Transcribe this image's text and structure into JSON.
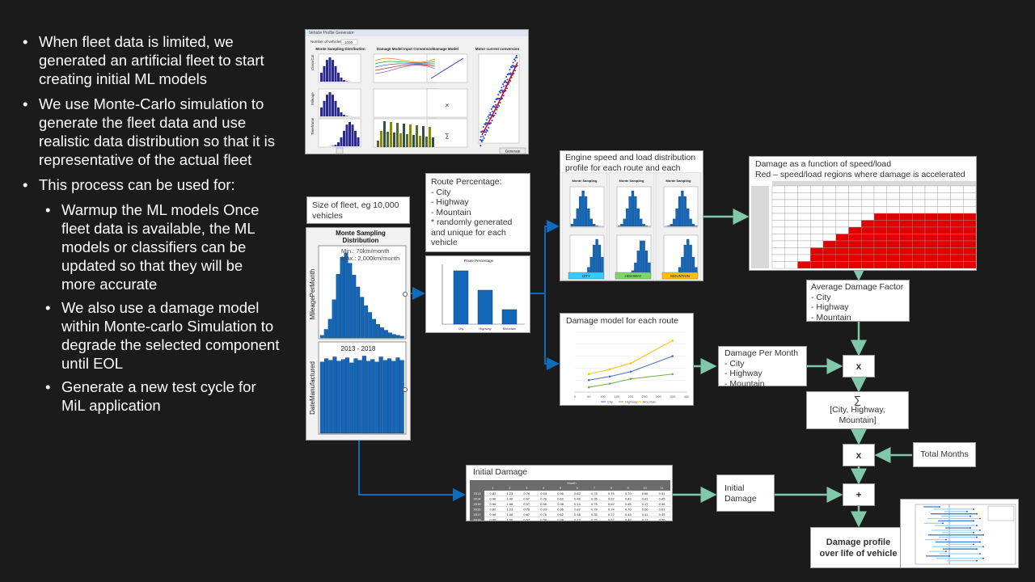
{
  "bullets": [
    {
      "level": 1,
      "text": "When fleet data is limited,  we generated an artificial fleet to start creating initial ML models"
    },
    {
      "level": 1,
      "text": "We use Monte-Carlo simulation  to generate the fleet data and use realistic data distribution so that it is representative of the actual fleet"
    },
    {
      "level": 1,
      "text": "This process can be used for:"
    },
    {
      "level": 2,
      "text": "Warmup  the ML models Once fleet data is available, the ML models or classifiers can be updated so that they will be more accurate"
    },
    {
      "level": 2,
      "text": "We also use a damage model  within Monte-carlo Simulation  to degrade the selected component  until EOL"
    },
    {
      "level": 2,
      "text": "Generate a new test cycle for MiL application"
    }
  ],
  "tool_window": {
    "title": "Vehicle Profile Generator",
    "number_label": "Number of vehicles",
    "number_value": "1000",
    "col_headers": [
      "Monte Sampling Distribution",
      "Damage Model Input Conversion",
      "Damage Model",
      "Motor current conversion"
    ],
    "row_labels": [
      "Class/Cat",
      "Mileage",
      "Timeframe"
    ],
    "generate_button": "Generate"
  },
  "fleet_size": "Size of fleet, eg 10,000 vehicles",
  "monte_panel": {
    "title": "Monte Sampling Distribution",
    "min_label": "Min.: 70km/month",
    "max_label": "Max.: 2,000km/month",
    "ylabel1": "MileagePerMonth",
    "range_label": "2013 - 2018",
    "ylabel2": "DateManufactured",
    "hist1": [
      3,
      10,
      22,
      45,
      75,
      95,
      100,
      88,
      74,
      60,
      48,
      38,
      30,
      22,
      16,
      12,
      9,
      6,
      4,
      3,
      2
    ],
    "hist2": [
      84,
      88,
      86,
      90,
      85,
      87,
      89,
      83,
      88,
      86,
      91,
      85,
      87,
      84,
      90,
      86,
      88,
      85,
      89,
      86
    ]
  },
  "route_text": {
    "title": "Route Percentage:",
    "items": [
      "- City",
      "- Highway",
      "- Mountain"
    ],
    "note": "* randomly generated and unique for each vehicle"
  },
  "route_chart": {
    "title": "Route Percentage",
    "categories": [
      "City",
      "Highway",
      "Mountain"
    ],
    "values": [
      55,
      35,
      15
    ]
  },
  "engine_panel": {
    "label": "Engine speed and load distribution profile for each route and each vehicle.",
    "routes": [
      "CITY",
      "HIGHWAY",
      "MOUNTAIN"
    ],
    "route_colors": [
      "#33ccff",
      "#7dd66b",
      "#ffc000"
    ]
  },
  "damage_grid": {
    "label": "Damage as a function of speed/load",
    "label2": "Red – speed/load regions where damage is accelerated",
    "red_from": [
      13,
      12,
      11,
      10,
      9,
      8,
      7,
      6,
      5,
      4,
      4,
      3
    ]
  },
  "avg_damage": {
    "title": "Average Damage Factor",
    "items": [
      "- City",
      "- Highway",
      "- Mountain"
    ]
  },
  "damage_model": {
    "label": "Damage model for each route",
    "x": [
      50,
      100,
      150,
      200,
      250,
      300,
      350,
      400
    ],
    "x_ticks": [
      "0",
      "50",
      "100",
      "150",
      "200",
      "250",
      "300",
      "350",
      "400"
    ],
    "series": [
      {
        "name": "City",
        "color": "#4472c4",
        "x": [
          50,
          125,
          200,
          350
        ],
        "y": [
          1.0,
          1.3,
          1.7,
          3.0
        ]
      },
      {
        "name": "Highway",
        "color": "#70ad47",
        "x": [
          50,
          125,
          200,
          350
        ],
        "y": [
          0.4,
          0.7,
          1.1,
          1.5
        ]
      },
      {
        "name": "Mountain",
        "color": "#ffc000",
        "x": [
          50,
          125,
          200,
          350
        ],
        "y": [
          1.5,
          1.9,
          2.4,
          4.3
        ]
      }
    ]
  },
  "damage_per_month": {
    "title": "Damage Per Month",
    "items": [
      "- City",
      "- Highway",
      "- Mountain"
    ]
  },
  "ops": {
    "mult1": "x",
    "sum_symbol": "∑",
    "sum_text": "[City, Highway, Mountain]",
    "mult2": "x",
    "plus": "+"
  },
  "total_months": "Total Months",
  "initial_damage_table": {
    "title": "Initial Damage",
    "subheader": "Month",
    "cols": [
      "",
      "1",
      "2",
      "3",
      "4",
      "5",
      "6",
      "7",
      "8",
      "9",
      "10",
      "11"
    ],
    "rows": [
      [
        "2013",
        "0.82",
        "1.23",
        "0.76",
        "0.93",
        "0.96",
        "0.82",
        "0.78",
        "0.76",
        "0.70",
        "0.66",
        "0.61"
      ],
      [
        "2014",
        "0.96",
        "1.46",
        "0.67",
        "0.76",
        "0.62",
        "0.48",
        "0.35",
        "0.22",
        "0.43",
        "0.41",
        "0.45"
      ],
      [
        "2015",
        "0.96",
        "1.66",
        "0.57",
        "0.56",
        "0.38",
        "0.13",
        "0.76",
        "0.62",
        "0.48",
        "0.17",
        "0.36"
      ],
      [
        "2016",
        "0.82",
        "1.23",
        "0.76",
        "0.93",
        "0.96",
        "0.82",
        "0.78",
        "0.74",
        "0.70",
        "0.66",
        "0.61"
      ],
      [
        "2017",
        "0.96",
        "1.46",
        "0.67",
        "0.76",
        "0.62",
        "0.48",
        "0.35",
        "0.22",
        "0.43",
        "0.41",
        "0.45"
      ],
      [
        "2018",
        "0.96",
        "1.66",
        "0.57",
        "0.56",
        "0.38",
        "0.13",
        "0.76",
        "0.62",
        "0.48",
        "0.17",
        "0.36"
      ]
    ]
  },
  "initial_damage": "Initial Damage",
  "profile": "Damage profile over life of vehicle"
}
